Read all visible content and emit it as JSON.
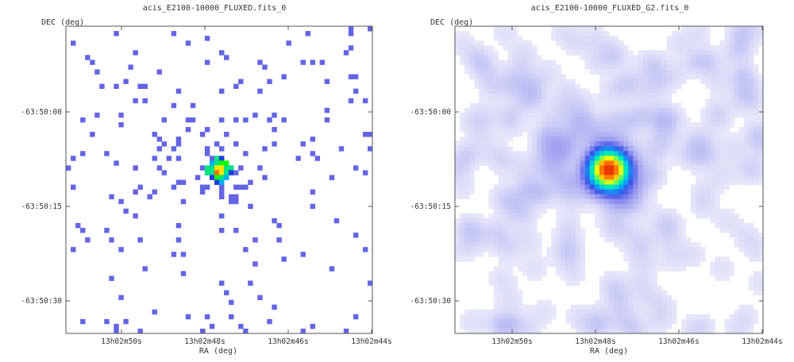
{
  "chart_data": [
    {
      "type": "heatmap",
      "title": "acis_E2100-10000_FLUXED.fits_0",
      "xlabel": "RA (deg)",
      "ylabel": "DEC (deg)",
      "x_ticks": [
        "13h02m50s",
        "13h02m48s",
        "13h02m46s",
        "13h02m44s"
      ],
      "y_ticks": [
        "-63:50:00",
        "-63:50:15",
        "-63:50:30"
      ],
      "smoothing": "none",
      "colormap": [
        "#ffffff",
        "#c8c8f0",
        "#6a6ae6",
        "#1e32dc",
        "#00c8ff",
        "#00ff00",
        "#ffff00",
        "#ff0000"
      ],
      "grid": false
    },
    {
      "type": "heatmap",
      "title": "acis_E2100-10000_FLUXED_G2.fits_0",
      "xlabel": "RA (deg)",
      "ylabel": "DEC (deg)",
      "x_ticks": [
        "13h02m50s",
        "13h02m48s",
        "13h02m46s",
        "13h02m44s"
      ],
      "y_ticks": [
        "-63:50:00",
        "-63:50:15",
        "-63:50:30"
      ],
      "smoothing": "gaussian sigma 2",
      "colormap": [
        "#ffffff",
        "#dcdcf8",
        "#a0a0f0",
        "#3c50e6",
        "#00b4ff",
        "#00ff96",
        "#ffff00",
        "#ff6400",
        "#c80000"
      ],
      "grid": false
    }
  ]
}
